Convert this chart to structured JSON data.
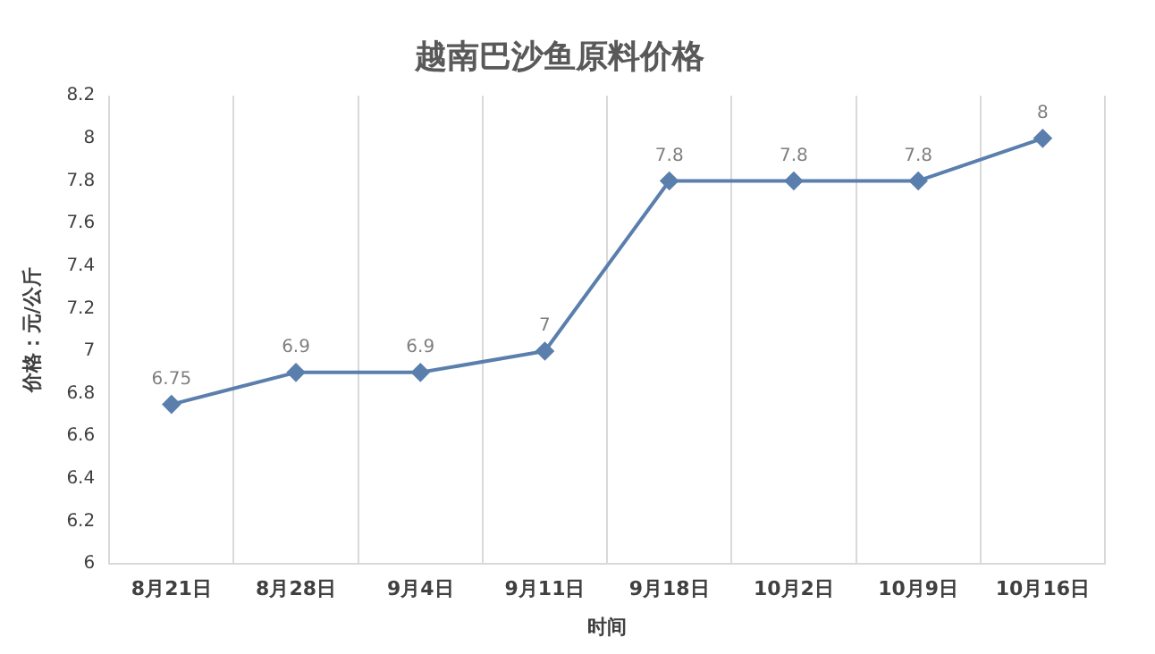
{
  "chart_data": {
    "type": "line",
    "title": "越南巴沙鱼原料价格",
    "xlabel": "时间",
    "ylabel": "价格：元/公斤",
    "categories": [
      "8月21日",
      "8月28日",
      "9月4日",
      "9月11日",
      "9月18日",
      "10月2日",
      "10月9日",
      "10月16日"
    ],
    "series": [
      {
        "color": "#5b7fad",
        "values": [
          6.75,
          6.9,
          6.9,
          7,
          7.8,
          7.8,
          7.8,
          8
        ]
      }
    ],
    "ylim": [
      6,
      8.2
    ],
    "yticks": [
      6,
      6.2,
      6.4,
      6.6,
      6.8,
      7,
      7.2,
      7.4,
      7.6,
      7.8,
      8,
      8.2
    ],
    "grid": "x",
    "legend": false,
    "marker": "diamond",
    "line_style": "solid",
    "data_labels": true
  }
}
